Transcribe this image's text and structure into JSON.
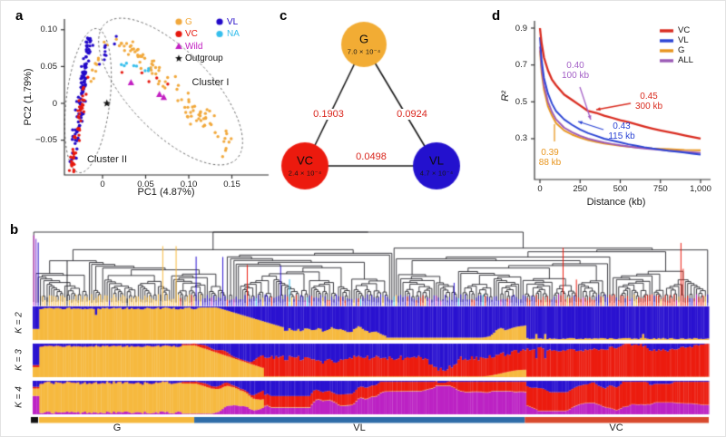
{
  "panel_labels": {
    "a": "a",
    "b": "b",
    "c": "c",
    "d": "d"
  },
  "chart_data": [
    {
      "panel": "a",
      "type": "scatter",
      "xlabel": "PC1 (4.87%)",
      "ylabel": "PC2 (1.79%)",
      "xlim": [
        -0.045,
        0.19
      ],
      "ylim": [
        -0.097,
        0.114
      ],
      "xticks": [
        {
          "label": "0",
          "value": 0
        },
        {
          "label": "0.05",
          "value": 0.05
        },
        {
          "label": "0.10",
          "value": 0.1
        },
        {
          "label": "0.15",
          "value": 0.15
        }
      ],
      "yticks": [
        {
          "label": "0.10",
          "value": 0.1
        },
        {
          "label": "0.05",
          "value": 0.05
        },
        {
          "label": "0",
          "value": 0
        },
        {
          "label": "−0.05",
          "value": -0.05
        }
      ],
      "cluster_labels": [
        "Cluster I",
        "Cluster II"
      ],
      "legend": [
        {
          "label": "G",
          "color": "#F1A83B",
          "marker": "circle",
          "col": 0
        },
        {
          "label": "VC",
          "color": "#E6170D",
          "marker": "circle",
          "col": 0
        },
        {
          "label": "Wild",
          "color": "#C21EC2",
          "marker": "triangle",
          "col": 0
        },
        {
          "label": "Outgroup",
          "color": "#141414",
          "marker": "star",
          "col": 0
        },
        {
          "label": "VL",
          "color": "#2209C8",
          "marker": "circle",
          "col": 1
        },
        {
          "label": "NA",
          "color": "#35BEEC",
          "marker": "circle",
          "col": 1
        }
      ],
      "clusters": [
        {
          "name": "VL",
          "color": "#2209C8",
          "n": 118,
          "p0": [
            -0.034,
            -0.078
          ],
          "p1": [
            -0.016,
            0.086
          ],
          "jx": 0.0045,
          "jy": 0.011,
          "bias": 0.8
        },
        {
          "name": "VC",
          "color": "#E6170D",
          "n": 48,
          "p0": [
            -0.036,
            -0.09
          ],
          "p1": [
            -0.02,
            0.026
          ],
          "jx": 0.004,
          "jy": 0.009,
          "bias": 1.5
        },
        {
          "name": "G",
          "color": "#F1A83B",
          "n": 92,
          "p0": [
            0.018,
            0.094
          ],
          "p1": [
            0.15,
            -0.06
          ],
          "jx": 0.015,
          "jy": 0.013,
          "bias": 1.0
        },
        {
          "name": "G-upper",
          "color": "#F1A83B",
          "n": 10,
          "p0": [
            -0.012,
            0.03
          ],
          "p1": [
            0.004,
            0.09
          ],
          "jx": 0.005,
          "jy": 0.008,
          "bias": 1.0
        },
        {
          "name": "VL-upper",
          "color": "#2209C8",
          "n": 9,
          "p0": [
            -0.004,
            0.055
          ],
          "p1": [
            0.013,
            0.09
          ],
          "jx": 0.005,
          "jy": 0.007,
          "bias": 1.0
        },
        {
          "name": "NA",
          "color": "#35BEEC",
          "n": 8,
          "p0": [
            0.022,
            0.053
          ],
          "p1": [
            0.056,
            0.044
          ],
          "jx": 0.004,
          "jy": 0.0035,
          "bias": 1.0
        },
        {
          "name": "VC-right",
          "color": "#E6170D",
          "n": 5,
          "p0": [
            0.018,
            0.047
          ],
          "p1": [
            0.085,
            0.028
          ],
          "jx": 0.006,
          "jy": 0.006,
          "bias": 1.0
        }
      ],
      "wild_points": [
        [
          0.033,
          0.028
        ],
        [
          0.066,
          0.012
        ],
        [
          0.071,
          0.008
        ]
      ],
      "outgroup_point": [
        0.005,
        0.0
      ]
    },
    {
      "panel": "b",
      "type": "admixture-dendrogram",
      "rows": [
        "K = 2",
        "K = 3",
        "K = 4"
      ],
      "groups": [
        {
          "label": "G",
          "bar_color": "#F5B83D",
          "frac": [
            0.0,
            0.239
          ]
        },
        {
          "label": "VL",
          "bar_color": "#2E6CA8",
          "frac": [
            0.239,
            0.728
          ]
        },
        {
          "label": "VC",
          "bar_color": "#D8492D",
          "frac": [
            0.728,
            1.0
          ]
        }
      ],
      "n_individuals": 304,
      "colors": {
        "orange": "#F6B93F",
        "blue": "#2A12D0",
        "red": "#EC1C0F",
        "magenta": "#BC22C4"
      }
    },
    {
      "panel": "c",
      "type": "network",
      "nodes": [
        {
          "id": "G",
          "value": "7.0 × 10⁻⁴",
          "color": "#F2AC34"
        },
        {
          "id": "VC",
          "value": "2.4 × 10⁻⁴",
          "color": "#EC1A0E"
        },
        {
          "id": "VL",
          "value": "4.7 × 10⁻⁴",
          "color": "#2311CE"
        }
      ],
      "edges": [
        {
          "a": "G",
          "b": "VC",
          "fst": "0.1903"
        },
        {
          "a": "G",
          "b": "VL",
          "fst": "0.0924"
        },
        {
          "a": "VC",
          "b": "VL",
          "fst": "0.0498"
        }
      ],
      "edge_label_color": "#D9251C"
    },
    {
      "panel": "d",
      "type": "line",
      "xlabel": "Distance (kb)",
      "ylabel": "R²",
      "xticks": [
        {
          "label": "0",
          "value": 0
        },
        {
          "label": "250",
          "value": 250
        },
        {
          "label": "500",
          "value": 500
        },
        {
          "label": "750",
          "value": 750
        },
        {
          "label": "1,000",
          "value": 1000
        }
      ],
      "yticks": [
        {
          "label": "0.9",
          "value": 0.9
        },
        {
          "label": "0.7",
          "value": 0.7
        },
        {
          "label": "0.5",
          "value": 0.5
        },
        {
          "label": "0.3",
          "value": 0.3
        }
      ],
      "x_kb": [
        0,
        10,
        25,
        50,
        75,
        100,
        150,
        200,
        250,
        300,
        350,
        400,
        450,
        500,
        550,
        600,
        650,
        700,
        750,
        800,
        850,
        900,
        950,
        1000
      ],
      "series": [
        {
          "name": "VC",
          "color": "#D92B1F",
          "y": [
            0.9,
            0.82,
            0.74,
            0.67,
            0.62,
            0.59,
            0.54,
            0.51,
            0.48,
            0.45,
            0.44,
            0.425,
            0.413,
            0.4,
            0.39,
            0.378,
            0.366,
            0.355,
            0.345,
            0.336,
            0.327,
            0.318,
            0.309,
            0.3
          ]
        },
        {
          "name": "VL",
          "color": "#2A43D4",
          "y": [
            0.85,
            0.73,
            0.63,
            0.545,
            0.49,
            0.45,
            0.405,
            0.375,
            0.35,
            0.33,
            0.315,
            0.3,
            0.29,
            0.28,
            0.27,
            0.262,
            0.254,
            0.247,
            0.241,
            0.235,
            0.23,
            0.225,
            0.219,
            0.214
          ]
        },
        {
          "name": "G",
          "color": "#E8951D",
          "y": [
            0.78,
            0.66,
            0.565,
            0.475,
            0.425,
            0.385,
            0.345,
            0.322,
            0.305,
            0.292,
            0.282,
            0.274,
            0.268,
            0.262,
            0.257,
            0.253,
            0.25,
            0.247,
            0.245,
            0.243,
            0.241,
            0.239,
            0.238,
            0.237
          ]
        },
        {
          "name": "ALL",
          "color": "#9B59B6",
          "y": [
            0.8,
            0.685,
            0.59,
            0.5,
            0.445,
            0.405,
            0.36,
            0.335,
            0.315,
            0.3,
            0.289,
            0.279,
            0.271,
            0.264,
            0.258,
            0.252,
            0.247,
            0.243,
            0.239,
            0.235,
            0.232,
            0.229,
            0.226,
            0.223
          ]
        }
      ],
      "callouts": [
        {
          "series": "ALL",
          "value": "0.40",
          "distance": "100 kb",
          "color": "#A35FC6"
        },
        {
          "series": "VC",
          "value": "0.45",
          "distance": "300 kb",
          "color": "#D92B1F"
        },
        {
          "series": "VL",
          "value": "0.43",
          "distance": "115 kb",
          "color": "#2A43D4"
        },
        {
          "series": "G",
          "value": "0.39",
          "distance": "88 kb",
          "color": "#E8951D"
        }
      ]
    }
  ]
}
